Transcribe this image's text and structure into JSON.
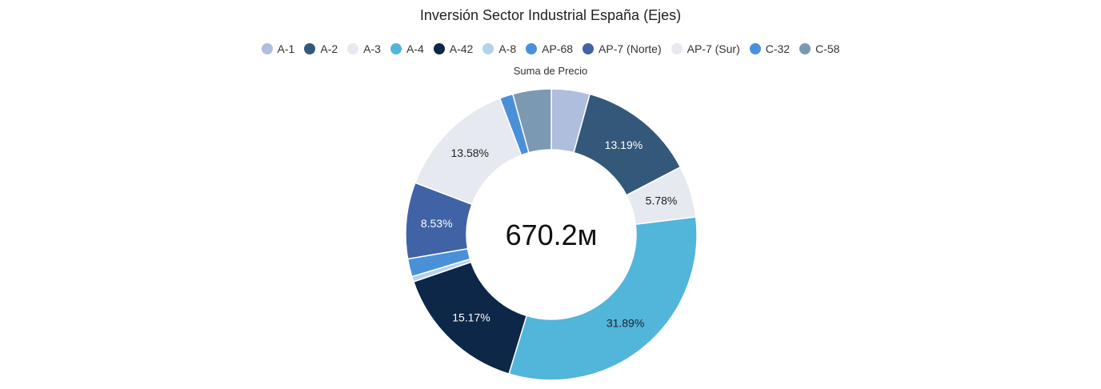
{
  "chart_data": {
    "type": "pie",
    "variant": "donut",
    "title": "Inversión Sector Industrial España (Ejes)",
    "subtitle": "Suma de Precio",
    "center_label": "670.2м",
    "legend_position": "top",
    "categories": [
      "A-1",
      "A-2",
      "A-3",
      "A-4",
      "A-42",
      "A-8",
      "AP-68",
      "AP-7 (Norte)",
      "AP-7 (Sur)",
      "C-32",
      "C-58"
    ],
    "values": [
      4.3,
      13.19,
      5.78,
      31.89,
      15.17,
      0.6,
      1.5,
      8.53,
      13.58,
      2.0,
      4.3
    ],
    "slice_order": [
      "A-1",
      "A-2",
      "A-3",
      "A-4",
      "A-42",
      "A-8",
      "C-32",
      "AP-7 (Norte)",
      "AP-7 (Sur)",
      "AP-68",
      "C-58"
    ],
    "data_labels": {
      "A-2": "13.19%",
      "A-3": "5.78%",
      "A-4": "31.89%",
      "A-42": "15.17%",
      "AP-7 (Norte)": "8.53%",
      "AP-7 (Sur)": "13.58%"
    },
    "colors": {
      "A-1": "#afbedd",
      "A-2": "#34587a",
      "A-3": "#e6e9ef",
      "A-4": "#52b5da",
      "A-42": "#0c2747",
      "A-8": "#b4d1ec",
      "AP-68": "#4a90d9",
      "AP-7 (Norte)": "#4063a6",
      "AP-7 (Sur)": "#e6e9ef",
      "C-32": "#4a90d9",
      "C-58": "#7c99b3"
    },
    "label_colors": {
      "A-2": "#ffffff",
      "A-3": "#222222",
      "A-4": "#222222",
      "A-42": "#ffffff",
      "AP-7 (Norte)": "#ffffff",
      "AP-7 (Sur)": "#222222"
    }
  }
}
